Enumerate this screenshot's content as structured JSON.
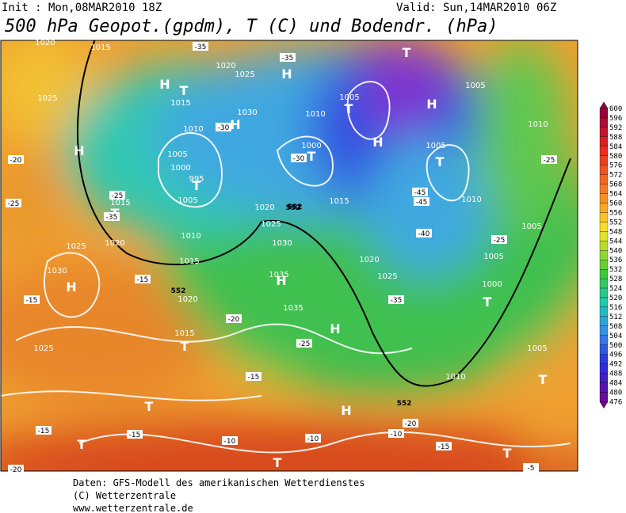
{
  "header": {
    "init": "Init : Mon,08MAR2010 18Z",
    "valid": "Valid: Sun,14MAR2010 06Z",
    "title": "500 hPa Geopot.(gpdm), T (C) und Bodendr. (hPa)"
  },
  "map": {
    "labels": [
      "H",
      "H",
      "H",
      "H",
      "H",
      "H",
      "H",
      "H",
      "H",
      "H",
      "T",
      "T",
      "T",
      "T",
      "T",
      "T",
      "T",
      "T",
      "T",
      "T",
      "T",
      "T",
      "T",
      "T",
      "1020",
      "1015",
      "1025",
      "1020",
      "1025",
      "1030",
      "1015",
      "1010",
      "1005",
      "995",
      "1000",
      "1005",
      "1010",
      "1015",
      "1020",
      "1015",
      "1025",
      "1030",
      "1035",
      "1035",
      "1030",
      "1025",
      "1020",
      "1010",
      "1005",
      "1000",
      "1005",
      "1010",
      "1015",
      "1020",
      "1025",
      "1005",
      "1000",
      "1005",
      "1010",
      "1005",
      "1010",
      "1005",
      "1020",
      "1015",
      "1025",
      "-35",
      "-35",
      "-35",
      "-30",
      "-30",
      "-45",
      "-45",
      "-40",
      "-35",
      "-25",
      "-25",
      "-20",
      "-25",
      "-25",
      "-15",
      "-15",
      "-15",
      "-15",
      "-15",
      "-20",
      "-10",
      "-10",
      "-20",
      "-10",
      "-15",
      "-5",
      "-20",
      "-25",
      "552",
      "552",
      "552",
      "552"
    ]
  },
  "colorbar": {
    "levels": [
      600,
      596,
      592,
      588,
      584,
      580,
      576,
      572,
      568,
      564,
      560,
      556,
      552,
      548,
      544,
      540,
      536,
      532,
      528,
      524,
      520,
      516,
      512,
      508,
      504,
      500,
      496,
      492,
      488,
      484,
      480,
      476
    ]
  },
  "footer": {
    "source": "Daten: GFS-Modell des amerikanischen Wetterdienstes",
    "copyright": "(C) Wetterzentrale",
    "url": "www.wetterzentrale.de"
  }
}
